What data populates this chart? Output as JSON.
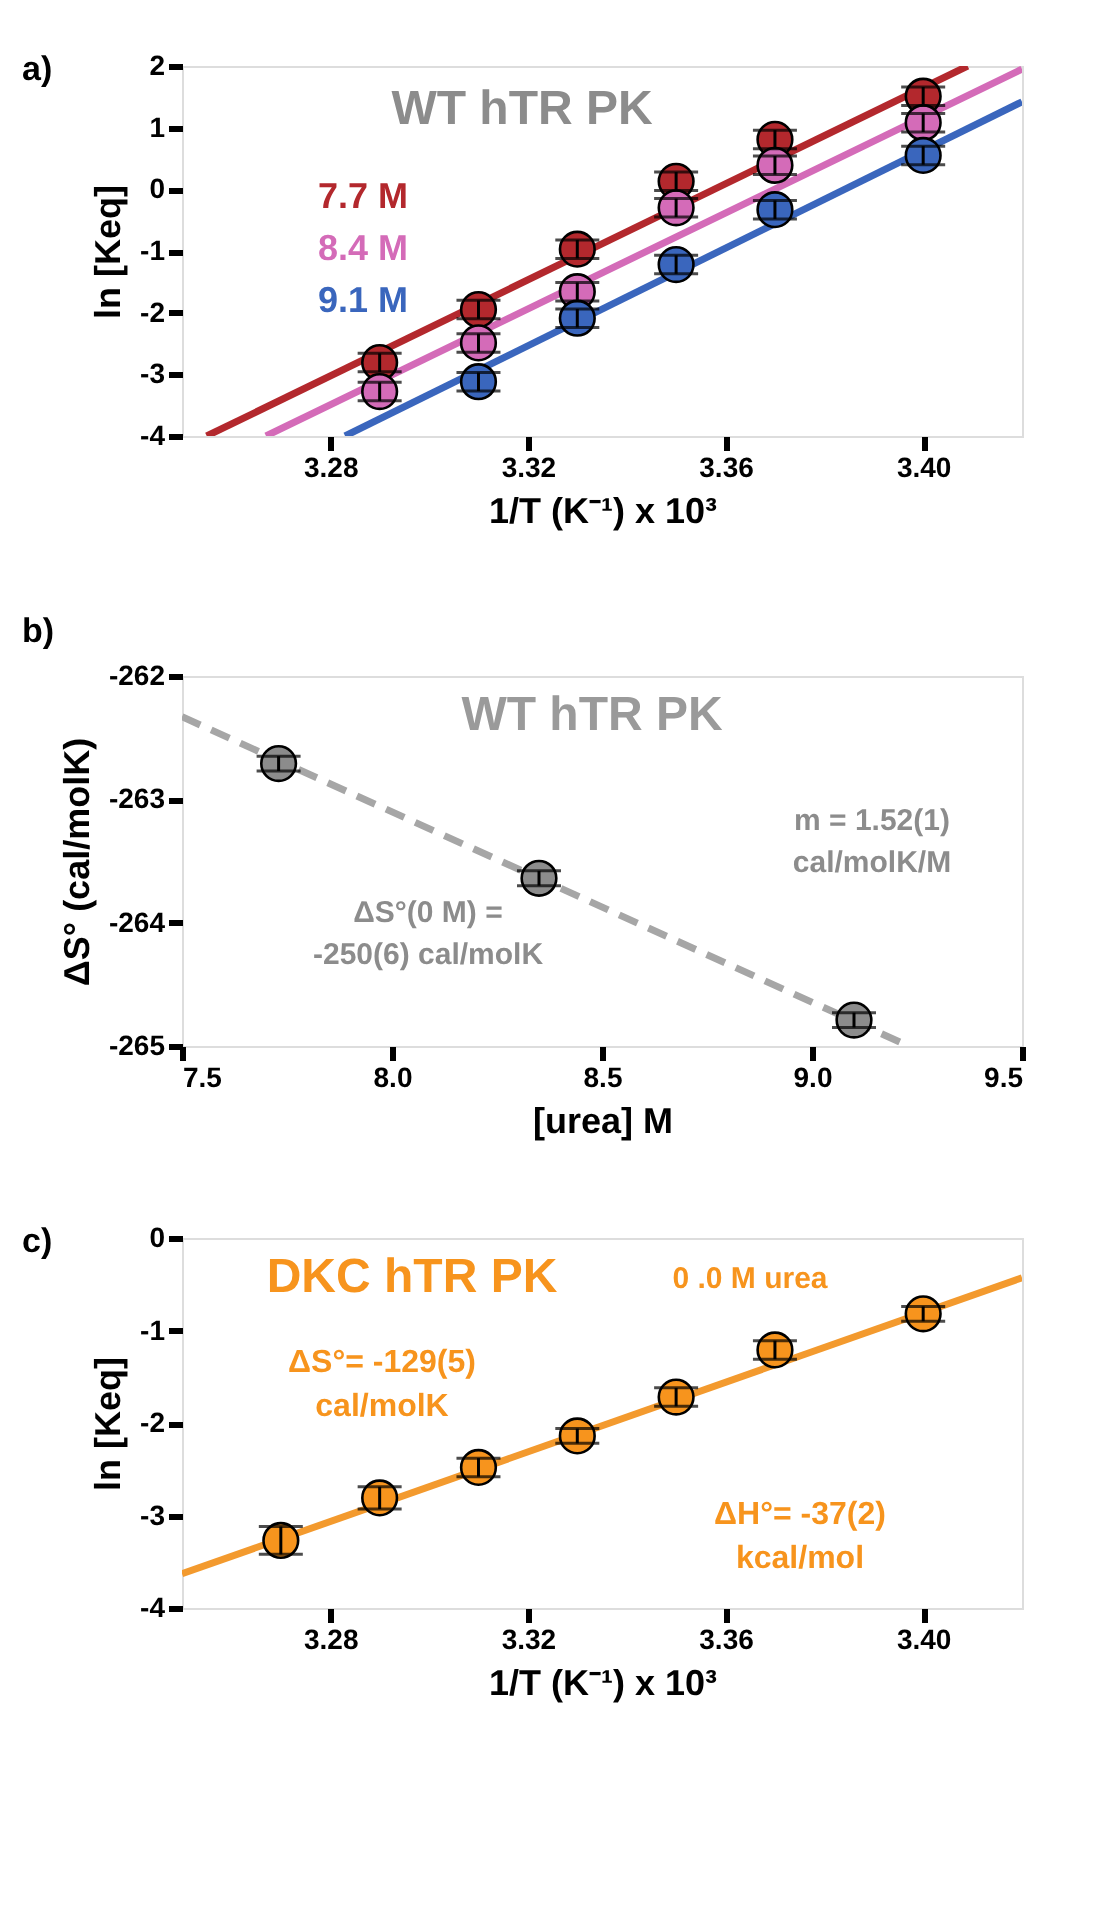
{
  "chart_data": [
    {
      "type": "scatter",
      "title": "WT hTR PK",
      "xlabel": "1/T (K⁻¹) x 10³",
      "ylabel": "ln [Keq]",
      "annotations": [
        "a)"
      ],
      "xlim": [
        3.25,
        3.42
      ],
      "xticks": [
        3.28,
        3.32,
        3.36,
        {
          "value": 3.4,
          "label": "3.40"
        }
      ],
      "ylim": [
        -4,
        2
      ],
      "yticks": [
        -4,
        -3,
        -2,
        -1,
        0,
        1,
        2
      ],
      "grid": false,
      "marker": "circle",
      "series": [
        {
          "type": "line",
          "marker": "none",
          "color": "#b3282d",
          "x": [
            3.255,
            3.409
          ],
          "values": [
            -4,
            2
          ]
        },
        {
          "type": "line",
          "marker": "none",
          "color": "#d46bb8",
          "x": [
            3.267,
            3.42
          ],
          "values": [
            -4,
            1.95
          ]
        },
        {
          "type": "line",
          "marker": "none",
          "color": "#3a66bd",
          "x": [
            3.283,
            3.42
          ],
          "values": [
            -4,
            1.42
          ]
        },
        {
          "name": "7.7 M",
          "color": "#b3282d",
          "x": [
            3.29,
            3.31,
            3.33,
            3.35,
            3.37,
            3.4
          ],
          "values": [
            -2.81,
            -1.95,
            -0.97,
            0.13,
            0.81,
            1.51
          ],
          "errors": [
            0.15,
            0.15,
            0.15,
            0.15,
            0.15,
            0.15
          ]
        },
        {
          "name": "8.4 M",
          "color": "#d46bb8",
          "x": [
            3.29,
            3.31,
            3.33,
            3.35,
            3.37,
            3.4
          ],
          "values": [
            -3.28,
            -2.49,
            -1.66,
            -0.3,
            0.39,
            1.08
          ],
          "errors": [
            0.15,
            0.15,
            0.15,
            0.15,
            0.15,
            0.15
          ]
        },
        {
          "name": "9.1 M",
          "color": "#3a66bd",
          "x": [
            3.31,
            3.33,
            3.35,
            3.37,
            3.4
          ],
          "values": [
            -3.12,
            -2.09,
            -1.22,
            -0.33,
            0.55
          ],
          "errors": [
            0.15,
            0.15,
            0.15,
            0.15,
            0.15
          ]
        }
      ]
    },
    {
      "type": "scatter",
      "title": "WT hTR PK",
      "xlabel": "[urea] M",
      "ylabel": "ΔS° (cal/molK)",
      "annotations": [
        "b)",
        "ΔS°(0 M) =\n-250(6) cal/molK",
        "m = 1.52(1)\ncal/molK/M"
      ],
      "xlim": [
        7.5,
        9.5
      ],
      "xticks": [
        {
          "value": 7.5,
          "label": "7.5"
        },
        {
          "value": 8,
          "label": "8.0"
        },
        {
          "value": 8.5,
          "label": "8.5"
        },
        {
          "value": 9,
          "label": "9.0"
        },
        {
          "value": 9.5,
          "label": "9.5"
        }
      ],
      "ylim": [
        -265,
        -262
      ],
      "yticks": [
        -265,
        -264,
        -263,
        -262
      ],
      "grid": false,
      "marker": "circle",
      "line_style": "dashed",
      "series": [
        {
          "type": "line",
          "marker": "none",
          "color": "#a6a6a6",
          "x": [
            7.5,
            9.23
          ],
          "values": [
            -262.33,
            -265.0
          ]
        },
        {
          "color": "#8c8c8c",
          "x": [
            7.73,
            8.35,
            9.1
          ],
          "values": [
            -262.71,
            -263.64,
            -264.79
          ],
          "errors": [
            0.06,
            0.06,
            0.06
          ]
        }
      ]
    },
    {
      "type": "scatter",
      "title": "DKC hTR PK",
      "xlabel": "1/T (K⁻¹) x 10³",
      "ylabel": "ln [Keq]",
      "annotations": [
        "c)",
        "0 .0 M urea",
        "ΔS°= -129(5)\ncal/molK",
        "ΔH°= -37(2)\nkcal/mol"
      ],
      "xlim": [
        3.25,
        3.42
      ],
      "xticks": [
        3.28,
        3.32,
        3.36,
        {
          "value": 3.4,
          "label": "3.40"
        }
      ],
      "ylim": [
        -4,
        0
      ],
      "yticks": [
        -4,
        -3,
        -2,
        -1,
        0
      ],
      "grid": false,
      "marker": "circle",
      "series": [
        {
          "type": "line",
          "marker": "none",
          "color": "#f39a2e",
          "x": [
            3.25,
            3.42
          ],
          "values": [
            -3.63,
            -0.43
          ]
        },
        {
          "color": "#f7941d",
          "x": [
            3.27,
            3.29,
            3.31,
            3.33,
            3.35,
            3.37,
            3.4
          ],
          "values": [
            -3.27,
            -2.81,
            -2.48,
            -2.14,
            -1.72,
            -1.21,
            -0.82
          ],
          "errors": [
            0.15,
            0.12,
            0.1,
            0.08,
            0.1,
            0.1,
            0.08
          ]
        }
      ]
    }
  ]
}
